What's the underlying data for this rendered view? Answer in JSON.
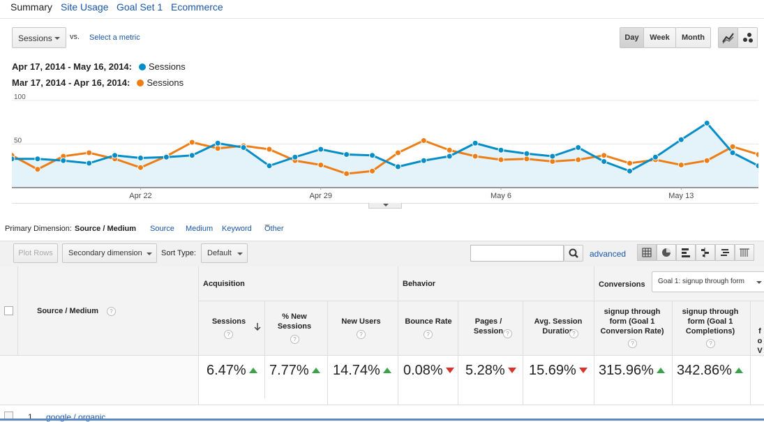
{
  "tabs": {
    "summary": "Summary",
    "site_usage": "Site Usage",
    "goal_set": "Goal Set 1",
    "ecommerce": "Ecommerce"
  },
  "metric_select": {
    "value": "Sessions",
    "vs": "vs.",
    "select_metric": "Select a metric"
  },
  "period_buttons": {
    "day": "Day",
    "week": "Week",
    "month": "Month"
  },
  "legend": {
    "current_range": "Apr 17, 2014 - May 16, 2014:",
    "previous_range": "Mar 17, 2014 - Apr 16, 2014:",
    "series_label": "Sessions"
  },
  "colors": {
    "current": "#058dc7",
    "previous": "#ed7e17",
    "accent": "#1a56a8"
  },
  "chart_data": {
    "type": "line",
    "ylim": [
      0,
      100
    ],
    "y_ticks": [
      "100",
      "50"
    ],
    "x_tick_labels": [
      "Apr 22",
      "Apr 29",
      "May 6",
      "May 13"
    ],
    "x_tick_index": [
      5,
      12,
      19,
      26
    ],
    "series": [
      {
        "name": "Apr 17, 2014 - May 16, 2014",
        "values": [
          33,
          33,
          31,
          28,
          37,
          34,
          35,
          37,
          51,
          46,
          25,
          35,
          44,
          38,
          37,
          24,
          31,
          36,
          51,
          43,
          39,
          36,
          46,
          30,
          19,
          35,
          55,
          74,
          40,
          25
        ]
      },
      {
        "name": "Mar 17, 2014 - Apr 16, 2014",
        "values": [
          37,
          21,
          36,
          40,
          33,
          23,
          36,
          52,
          45,
          48,
          44,
          31,
          26,
          16,
          19,
          40,
          54,
          43,
          36,
          32,
          33,
          30,
          32,
          37,
          28,
          32,
          26,
          31,
          47,
          38
        ]
      }
    ]
  },
  "dimension": {
    "label": "Primary Dimension:",
    "selected": "Source / Medium",
    "source": "Source",
    "medium": "Medium",
    "keyword": "Keyword",
    "other": "Other"
  },
  "toolbar": {
    "plot_rows": "Plot Rows",
    "secondary_dimension": "Secondary dimension",
    "sort_type_label": "Sort Type:",
    "sort_type_value": "Default",
    "search_placeholder": "",
    "advanced": "advanced"
  },
  "table": {
    "source_medium_header": "Source / Medium",
    "groups": {
      "acquisition": "Acquisition",
      "behavior": "Behavior",
      "conversions": "Conversions",
      "goal_select": "Goal 1: signup through form"
    },
    "columns": {
      "sessions": "Sessions",
      "pct_new_sessions": "% New Sessions",
      "new_users": "New Users",
      "bounce_rate": "Bounce Rate",
      "pages_session": "Pages / Session",
      "avg_session": "Avg. Session Duration",
      "conv_rate": "signup through form (Goal 1 Conversion Rate)",
      "completions": "signup through form (Goal 1 Completions)",
      "cut_off": "fo V"
    },
    "totals": {
      "sessions": "6.47%",
      "pct_new_sessions": "7.77%",
      "new_users": "14.74%",
      "bounce_rate": "0.08%",
      "pages_session": "5.28%",
      "avg_session": "15.69%",
      "conv_rate": "315.96%",
      "completions": "342.86%"
    },
    "first_row": {
      "index": "1.",
      "label": "google / organic"
    }
  }
}
